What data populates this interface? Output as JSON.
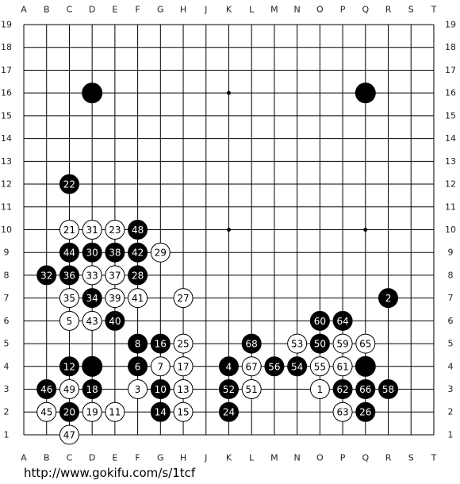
{
  "board": {
    "columns": [
      "A",
      "B",
      "C",
      "D",
      "E",
      "F",
      "G",
      "H",
      "J",
      "K",
      "L",
      "M",
      "N",
      "O",
      "P",
      "Q",
      "R",
      "S",
      "T"
    ],
    "rows": [
      19,
      18,
      17,
      16,
      15,
      14,
      13,
      12,
      11,
      10,
      9,
      8,
      7,
      6,
      5,
      4,
      3,
      2,
      1
    ],
    "stones": [
      {
        "col": "D",
        "row": 16,
        "color": "black"
      },
      {
        "col": "Q",
        "row": 16,
        "color": "black"
      },
      {
        "col": "D",
        "row": 4,
        "color": "black"
      },
      {
        "col": "Q",
        "row": 4,
        "color": "black"
      },
      {
        "col": "C",
        "row": 12,
        "color": "black",
        "label": 22
      },
      {
        "col": "C",
        "row": 10,
        "color": "white",
        "label": 21
      },
      {
        "col": "D",
        "row": 10,
        "color": "white",
        "label": 31
      },
      {
        "col": "E",
        "row": 10,
        "color": "white",
        "label": 23
      },
      {
        "col": "F",
        "row": 10,
        "color": "black",
        "label": 48
      },
      {
        "col": "C",
        "row": 9,
        "color": "black",
        "label": 44
      },
      {
        "col": "D",
        "row": 9,
        "color": "black",
        "label": 30
      },
      {
        "col": "E",
        "row": 9,
        "color": "black",
        "label": 38
      },
      {
        "col": "F",
        "row": 9,
        "color": "black",
        "label": 42
      },
      {
        "col": "G",
        "row": 9,
        "color": "white",
        "label": 29
      },
      {
        "col": "B",
        "row": 8,
        "color": "black",
        "label": 32
      },
      {
        "col": "C",
        "row": 8,
        "color": "black",
        "label": 36
      },
      {
        "col": "D",
        "row": 8,
        "color": "white",
        "label": 33
      },
      {
        "col": "E",
        "row": 8,
        "color": "white",
        "label": 37
      },
      {
        "col": "F",
        "row": 8,
        "color": "black",
        "label": 28
      },
      {
        "col": "C",
        "row": 7,
        "color": "white",
        "label": 35
      },
      {
        "col": "D",
        "row": 7,
        "color": "black",
        "label": 34
      },
      {
        "col": "E",
        "row": 7,
        "color": "white",
        "label": 39
      },
      {
        "col": "F",
        "row": 7,
        "color": "white",
        "label": 41
      },
      {
        "col": "H",
        "row": 7,
        "color": "white",
        "label": 27
      },
      {
        "col": "R",
        "row": 7,
        "color": "black",
        "label": 2
      },
      {
        "col": "C",
        "row": 6,
        "color": "white",
        "label": 5
      },
      {
        "col": "D",
        "row": 6,
        "color": "white",
        "label": 43
      },
      {
        "col": "E",
        "row": 6,
        "color": "black",
        "label": 40
      },
      {
        "col": "O",
        "row": 6,
        "color": "black",
        "label": 60
      },
      {
        "col": "P",
        "row": 6,
        "color": "black",
        "label": 64
      },
      {
        "col": "F",
        "row": 5,
        "color": "black",
        "label": 8
      },
      {
        "col": "G",
        "row": 5,
        "color": "black",
        "label": 16
      },
      {
        "col": "H",
        "row": 5,
        "color": "white",
        "label": 25
      },
      {
        "col": "L",
        "row": 5,
        "color": "black",
        "label": 68
      },
      {
        "col": "N",
        "row": 5,
        "color": "white",
        "label": 53
      },
      {
        "col": "O",
        "row": 5,
        "color": "black",
        "label": 50
      },
      {
        "col": "P",
        "row": 5,
        "color": "white",
        "label": 59
      },
      {
        "col": "Q",
        "row": 5,
        "color": "white",
        "label": 65
      },
      {
        "col": "C",
        "row": 4,
        "color": "black",
        "label": 12
      },
      {
        "col": "F",
        "row": 4,
        "color": "black",
        "label": 6
      },
      {
        "col": "G",
        "row": 4,
        "color": "white",
        "label": 7
      },
      {
        "col": "H",
        "row": 4,
        "color": "white",
        "label": 17
      },
      {
        "col": "K",
        "row": 4,
        "color": "black",
        "label": 4
      },
      {
        "col": "L",
        "row": 4,
        "color": "white",
        "label": 67
      },
      {
        "col": "M",
        "row": 4,
        "color": "black",
        "label": 56
      },
      {
        "col": "N",
        "row": 4,
        "color": "black",
        "label": 54
      },
      {
        "col": "O",
        "row": 4,
        "color": "white",
        "label": 55
      },
      {
        "col": "P",
        "row": 4,
        "color": "white",
        "label": 61
      },
      {
        "col": "B",
        "row": 3,
        "color": "black",
        "label": 46
      },
      {
        "col": "C",
        "row": 3,
        "color": "white",
        "label": 49
      },
      {
        "col": "D",
        "row": 3,
        "color": "black",
        "label": 18
      },
      {
        "col": "F",
        "row": 3,
        "color": "white",
        "label": 3
      },
      {
        "col": "G",
        "row": 3,
        "color": "black",
        "label": 10
      },
      {
        "col": "H",
        "row": 3,
        "color": "white",
        "label": 13
      },
      {
        "col": "K",
        "row": 3,
        "color": "black",
        "label": 52
      },
      {
        "col": "L",
        "row": 3,
        "color": "white",
        "label": 51
      },
      {
        "col": "O",
        "row": 3,
        "color": "white",
        "label": 1
      },
      {
        "col": "P",
        "row": 3,
        "color": "black",
        "label": 62
      },
      {
        "col": "Q",
        "row": 3,
        "color": "black",
        "label": 66
      },
      {
        "col": "R",
        "row": 3,
        "color": "black",
        "label": 58
      },
      {
        "col": "B",
        "row": 2,
        "color": "white",
        "label": 45
      },
      {
        "col": "C",
        "row": 2,
        "color": "black",
        "label": 20
      },
      {
        "col": "D",
        "row": 2,
        "color": "white",
        "label": 19
      },
      {
        "col": "E",
        "row": 2,
        "color": "white",
        "label": 11
      },
      {
        "col": "G",
        "row": 2,
        "color": "black",
        "label": 14
      },
      {
        "col": "H",
        "row": 2,
        "color": "white",
        "label": 15
      },
      {
        "col": "K",
        "row": 2,
        "color": "black",
        "label": 24
      },
      {
        "col": "P",
        "row": 2,
        "color": "white",
        "label": 63
      },
      {
        "col": "Q",
        "row": 2,
        "color": "black",
        "label": 26
      },
      {
        "col": "C",
        "row": 1,
        "color": "white",
        "label": 47
      }
    ]
  },
  "footer": {
    "url": "http://www.gokifu.com/s/1tcf"
  }
}
